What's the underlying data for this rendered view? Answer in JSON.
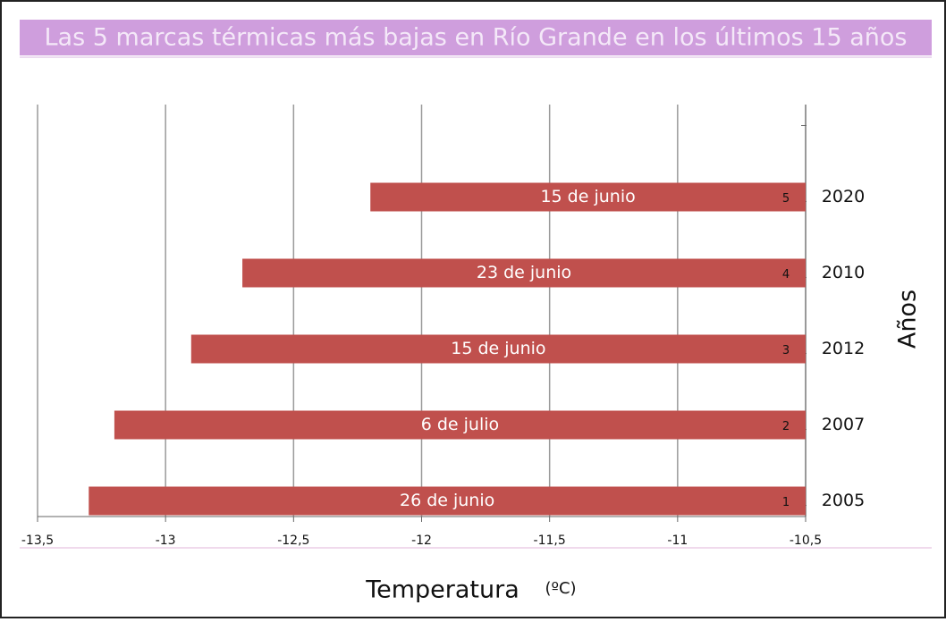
{
  "chart_data": {
    "type": "bar",
    "orientation": "horizontal",
    "title": "Las 5 marcas térmicas más bajas en Río Grande en los últimos 15 años",
    "x_label": "Temperatura",
    "x_unit": "(ºC)",
    "y_label": "Años",
    "categories": [
      "2020",
      "2010",
      "2012",
      "2007",
      "2005"
    ],
    "values": [
      -12.2,
      -12.7,
      -12.9,
      -13.2,
      -13.3
    ],
    "bar_labels": [
      "15 de junio",
      "23 de junio",
      "15 de junio",
      "6 de julio",
      "26 de junio"
    ],
    "ranks": [
      5,
      4,
      3,
      2,
      1
    ],
    "color": "#c0504d",
    "xlim": [
      -13.5,
      -10.5
    ],
    "xticks": [
      {
        "value": -13.5,
        "label": "-13,5"
      },
      -13,
      {
        "value": -12.5,
        "label": "-12,5"
      },
      -12,
      {
        "value": -11.5,
        "label": "-11,5"
      },
      -11,
      {
        "value": -10.5,
        "label": "-10,5"
      }
    ],
    "grid": true
  }
}
